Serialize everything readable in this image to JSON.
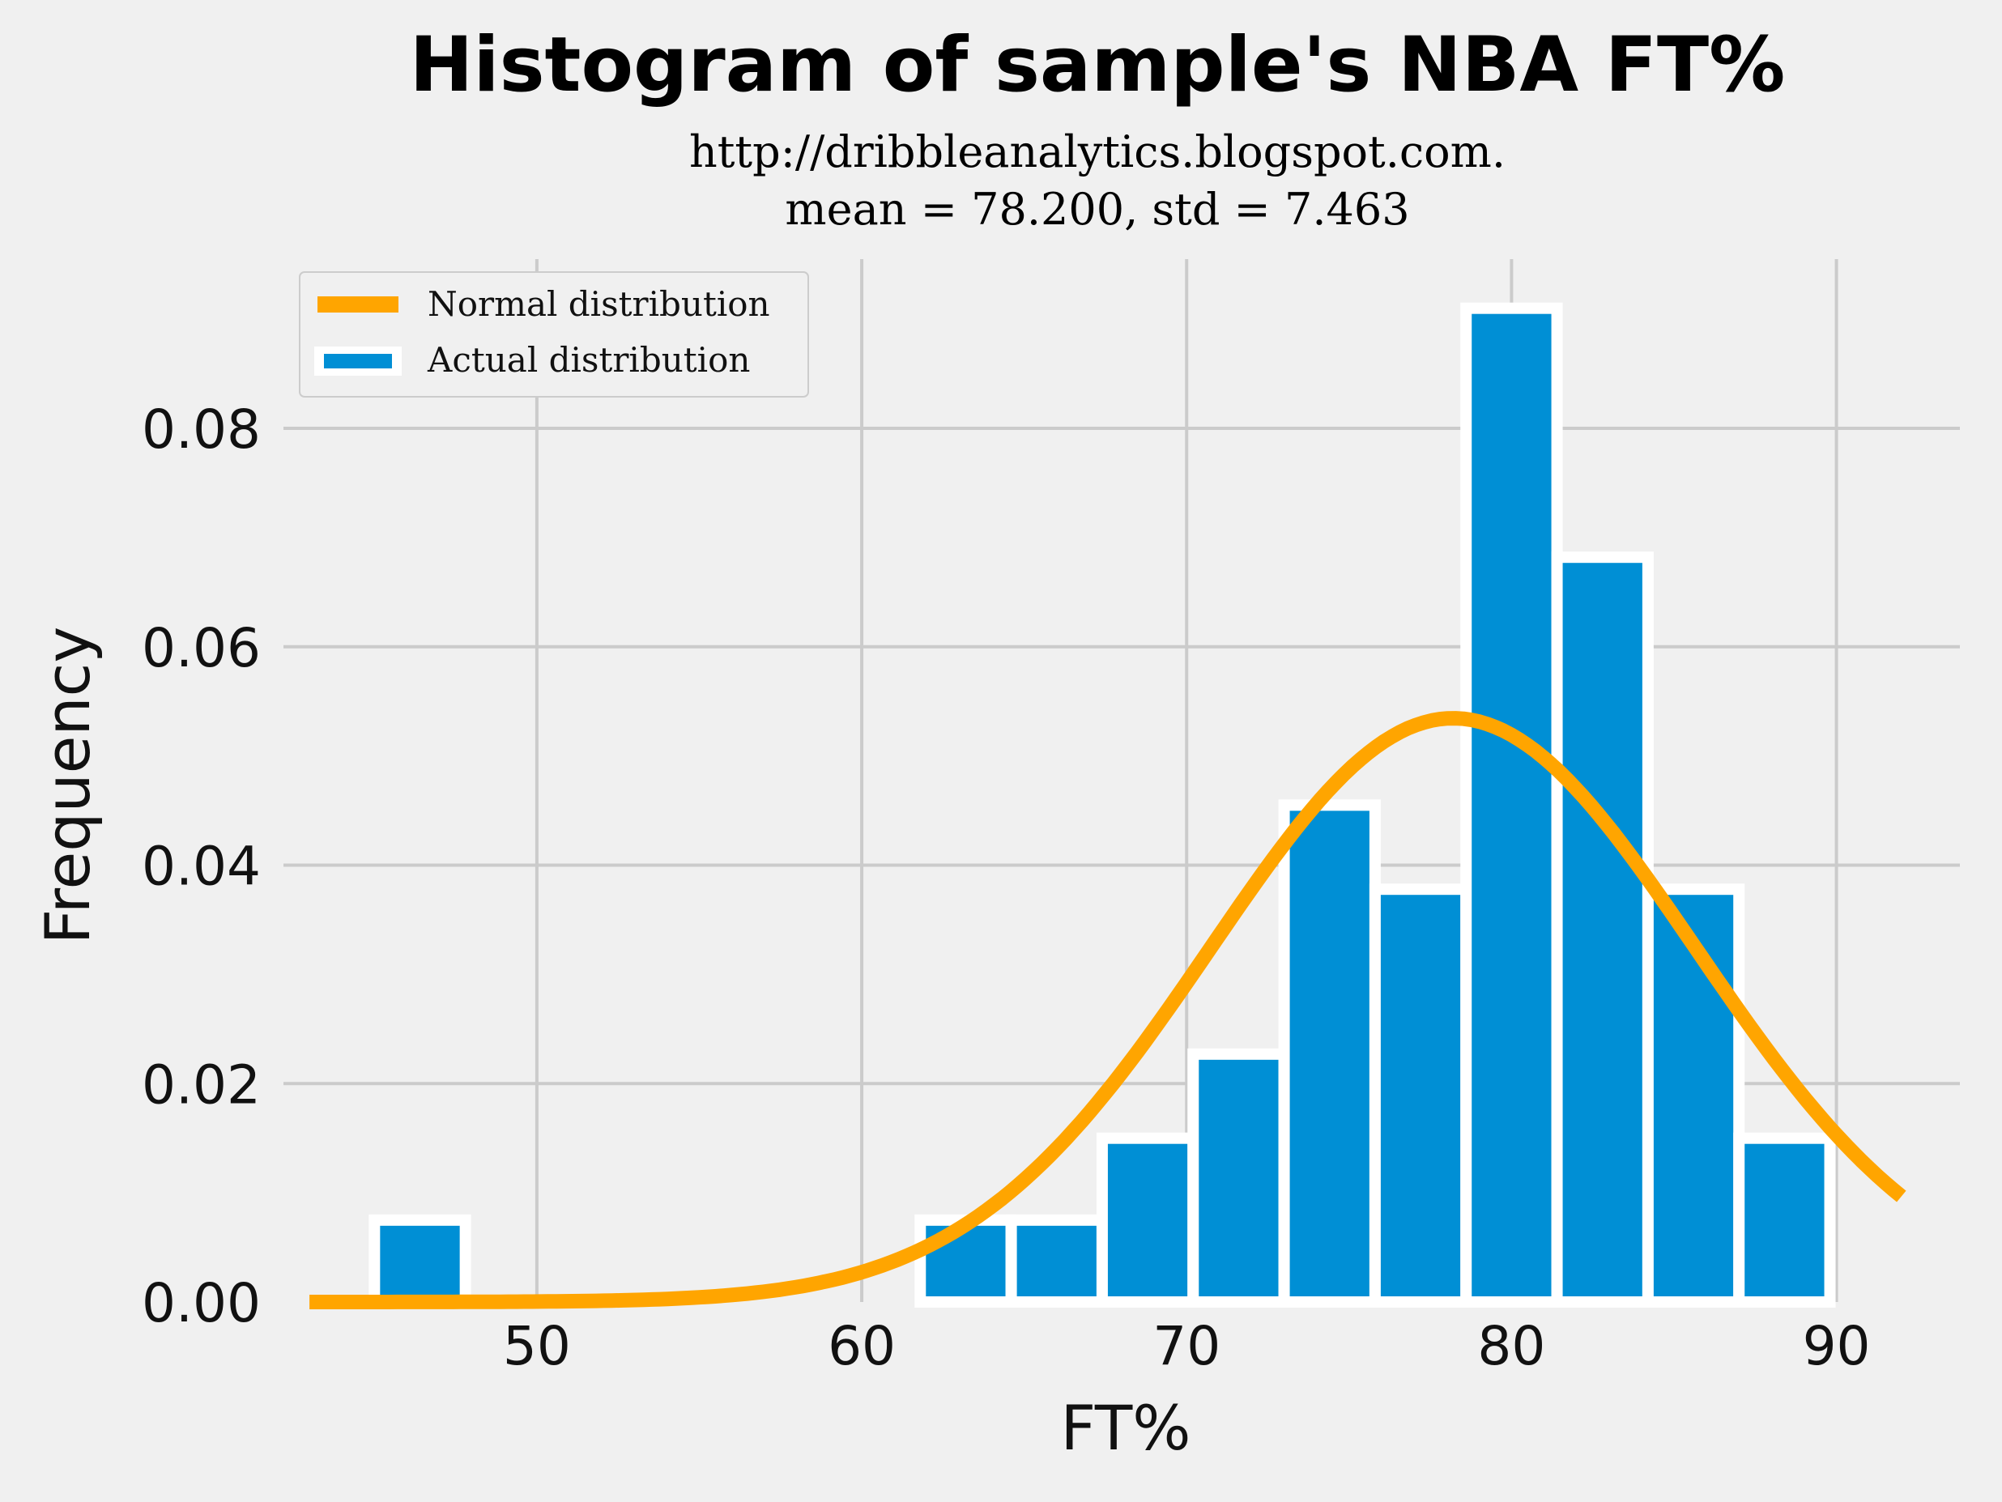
{
  "chart_data": {
    "type": "bar",
    "title": "Histogram of sample's NBA FT%",
    "subtitle_lines": [
      "http://dribbleanalytics.blogspot.com.",
      "mean = 78.200, std = 7.463"
    ],
    "xlabel": "FT%",
    "ylabel": "Frequency",
    "xlim": [
      42.2,
      93.8
    ],
    "ylim": [
      0,
      0.0955
    ],
    "xticks": [
      50,
      60,
      70,
      80,
      90
    ],
    "xtick_labels": [
      "50",
      "60",
      "70",
      "80",
      "90"
    ],
    "yticks": [
      0,
      0.02,
      0.04,
      0.06,
      0.08
    ],
    "ytick_labels": [
      "0.00",
      "0.02",
      "0.04",
      "0.06",
      "0.08"
    ],
    "grid": true,
    "legend_position": "top-left",
    "bin_edges": [
      45.0,
      47.8,
      50.6,
      53.4,
      56.2,
      59.0,
      61.8,
      64.6,
      67.4,
      70.2,
      73.0,
      75.8,
      78.6,
      81.4,
      84.2,
      87.0,
      89.8
    ],
    "series": [
      {
        "name": "Actual distribution",
        "kind": "histogram",
        "color": "#008fd5",
        "values": [
          0.0075,
          0,
          0,
          0,
          0,
          0,
          0.0075,
          0.0075,
          0.015,
          0.0227,
          0.0455,
          0.0378,
          0.091,
          0.0682,
          0.0378,
          0.015
        ]
      },
      {
        "name": "Normal distribution",
        "kind": "line",
        "color": "#ffa500",
        "mean": 78.2,
        "std": 7.463,
        "x_range": [
          43,
          92
        ]
      }
    ]
  }
}
